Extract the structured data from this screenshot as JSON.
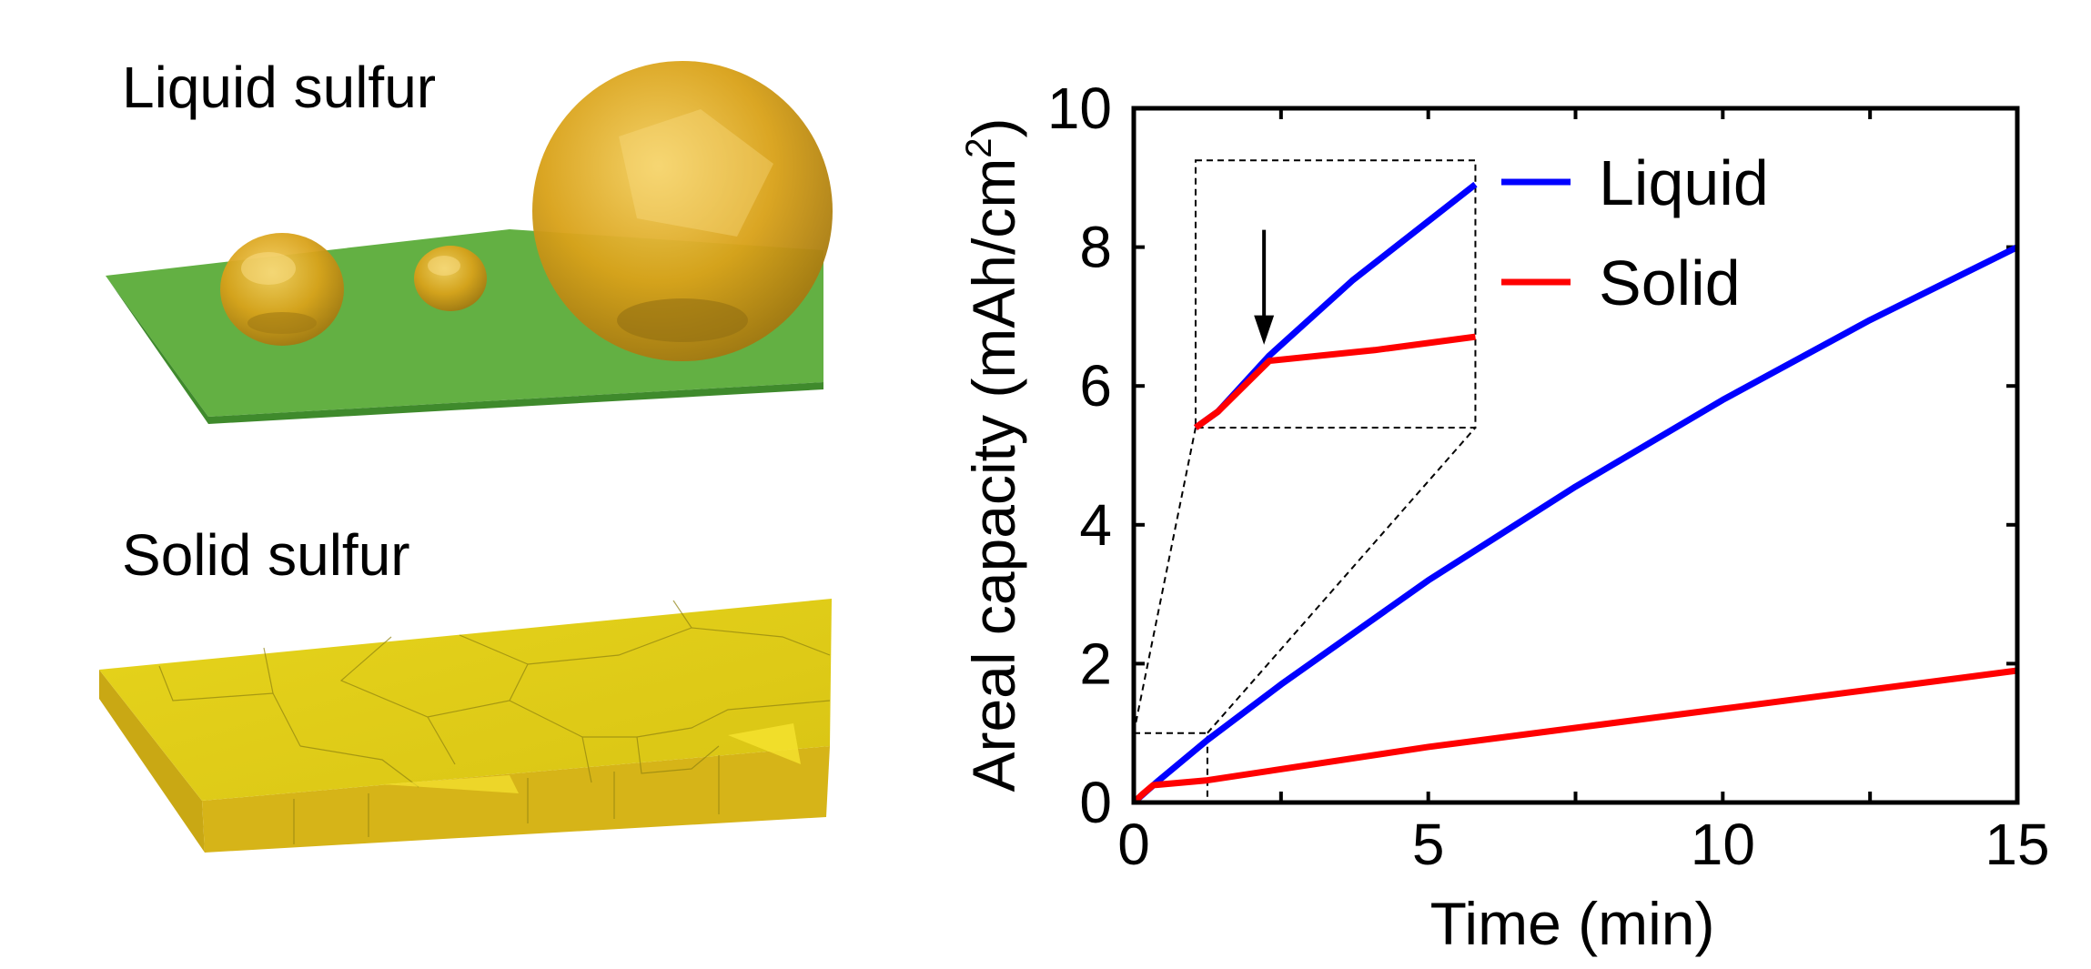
{
  "illustration": {
    "liquid_label": "Liquid sulfur",
    "solid_label": "Solid sulfur",
    "colors": {
      "substrate": "#63b043",
      "droplet": "#d9a21a",
      "solid": "#e2d21a"
    }
  },
  "chart_data": {
    "type": "line",
    "title": "",
    "xlabel": "Time (min)",
    "ylabel": "Areal capacity (mAh/cm",
    "ylabel_sup": "2",
    "ylabel_end": ")",
    "xlim": [
      0,
      15
    ],
    "ylim": [
      0,
      10
    ],
    "xticks": [
      0,
      5,
      10,
      15
    ],
    "yticks": [
      0,
      2,
      4,
      6,
      8,
      10
    ],
    "grid": false,
    "legend_position": "top-right",
    "series": [
      {
        "name": "Liquid",
        "color": "#0000ff",
        "x": [
          0,
          0.4,
          1.25,
          2.5,
          5,
          7.5,
          10,
          12.5,
          15
        ],
        "y": [
          0,
          0.3,
          0.9,
          1.7,
          3.2,
          4.55,
          5.8,
          6.95,
          8.0
        ]
      },
      {
        "name": "Solid",
        "color": "#ff0000",
        "x": [
          0,
          0.15,
          0.33,
          1.25,
          5,
          10,
          15
        ],
        "y": [
          0,
          0.12,
          0.25,
          0.32,
          0.8,
          1.35,
          1.9
        ]
      }
    ],
    "inset": {
      "source_xlim": [
        0,
        1.25
      ],
      "source_ylim": [
        0,
        1
      ],
      "placed_xlim": [
        1.05,
        5.8
      ],
      "placed_ylim": [
        5.4,
        9.25
      ],
      "series": [
        {
          "name": "Liquid",
          "x": [
            0,
            0.1,
            0.33,
            0.7,
            1.25
          ],
          "y": [
            0,
            0.06,
            0.27,
            0.55,
            0.91
          ]
        },
        {
          "name": "Solid",
          "x": [
            0,
            0.1,
            0.33,
            0.8,
            1.25
          ],
          "y": [
            0,
            0.06,
            0.25,
            0.29,
            0.34
          ]
        }
      ],
      "arrow_x": 0.33
    }
  }
}
